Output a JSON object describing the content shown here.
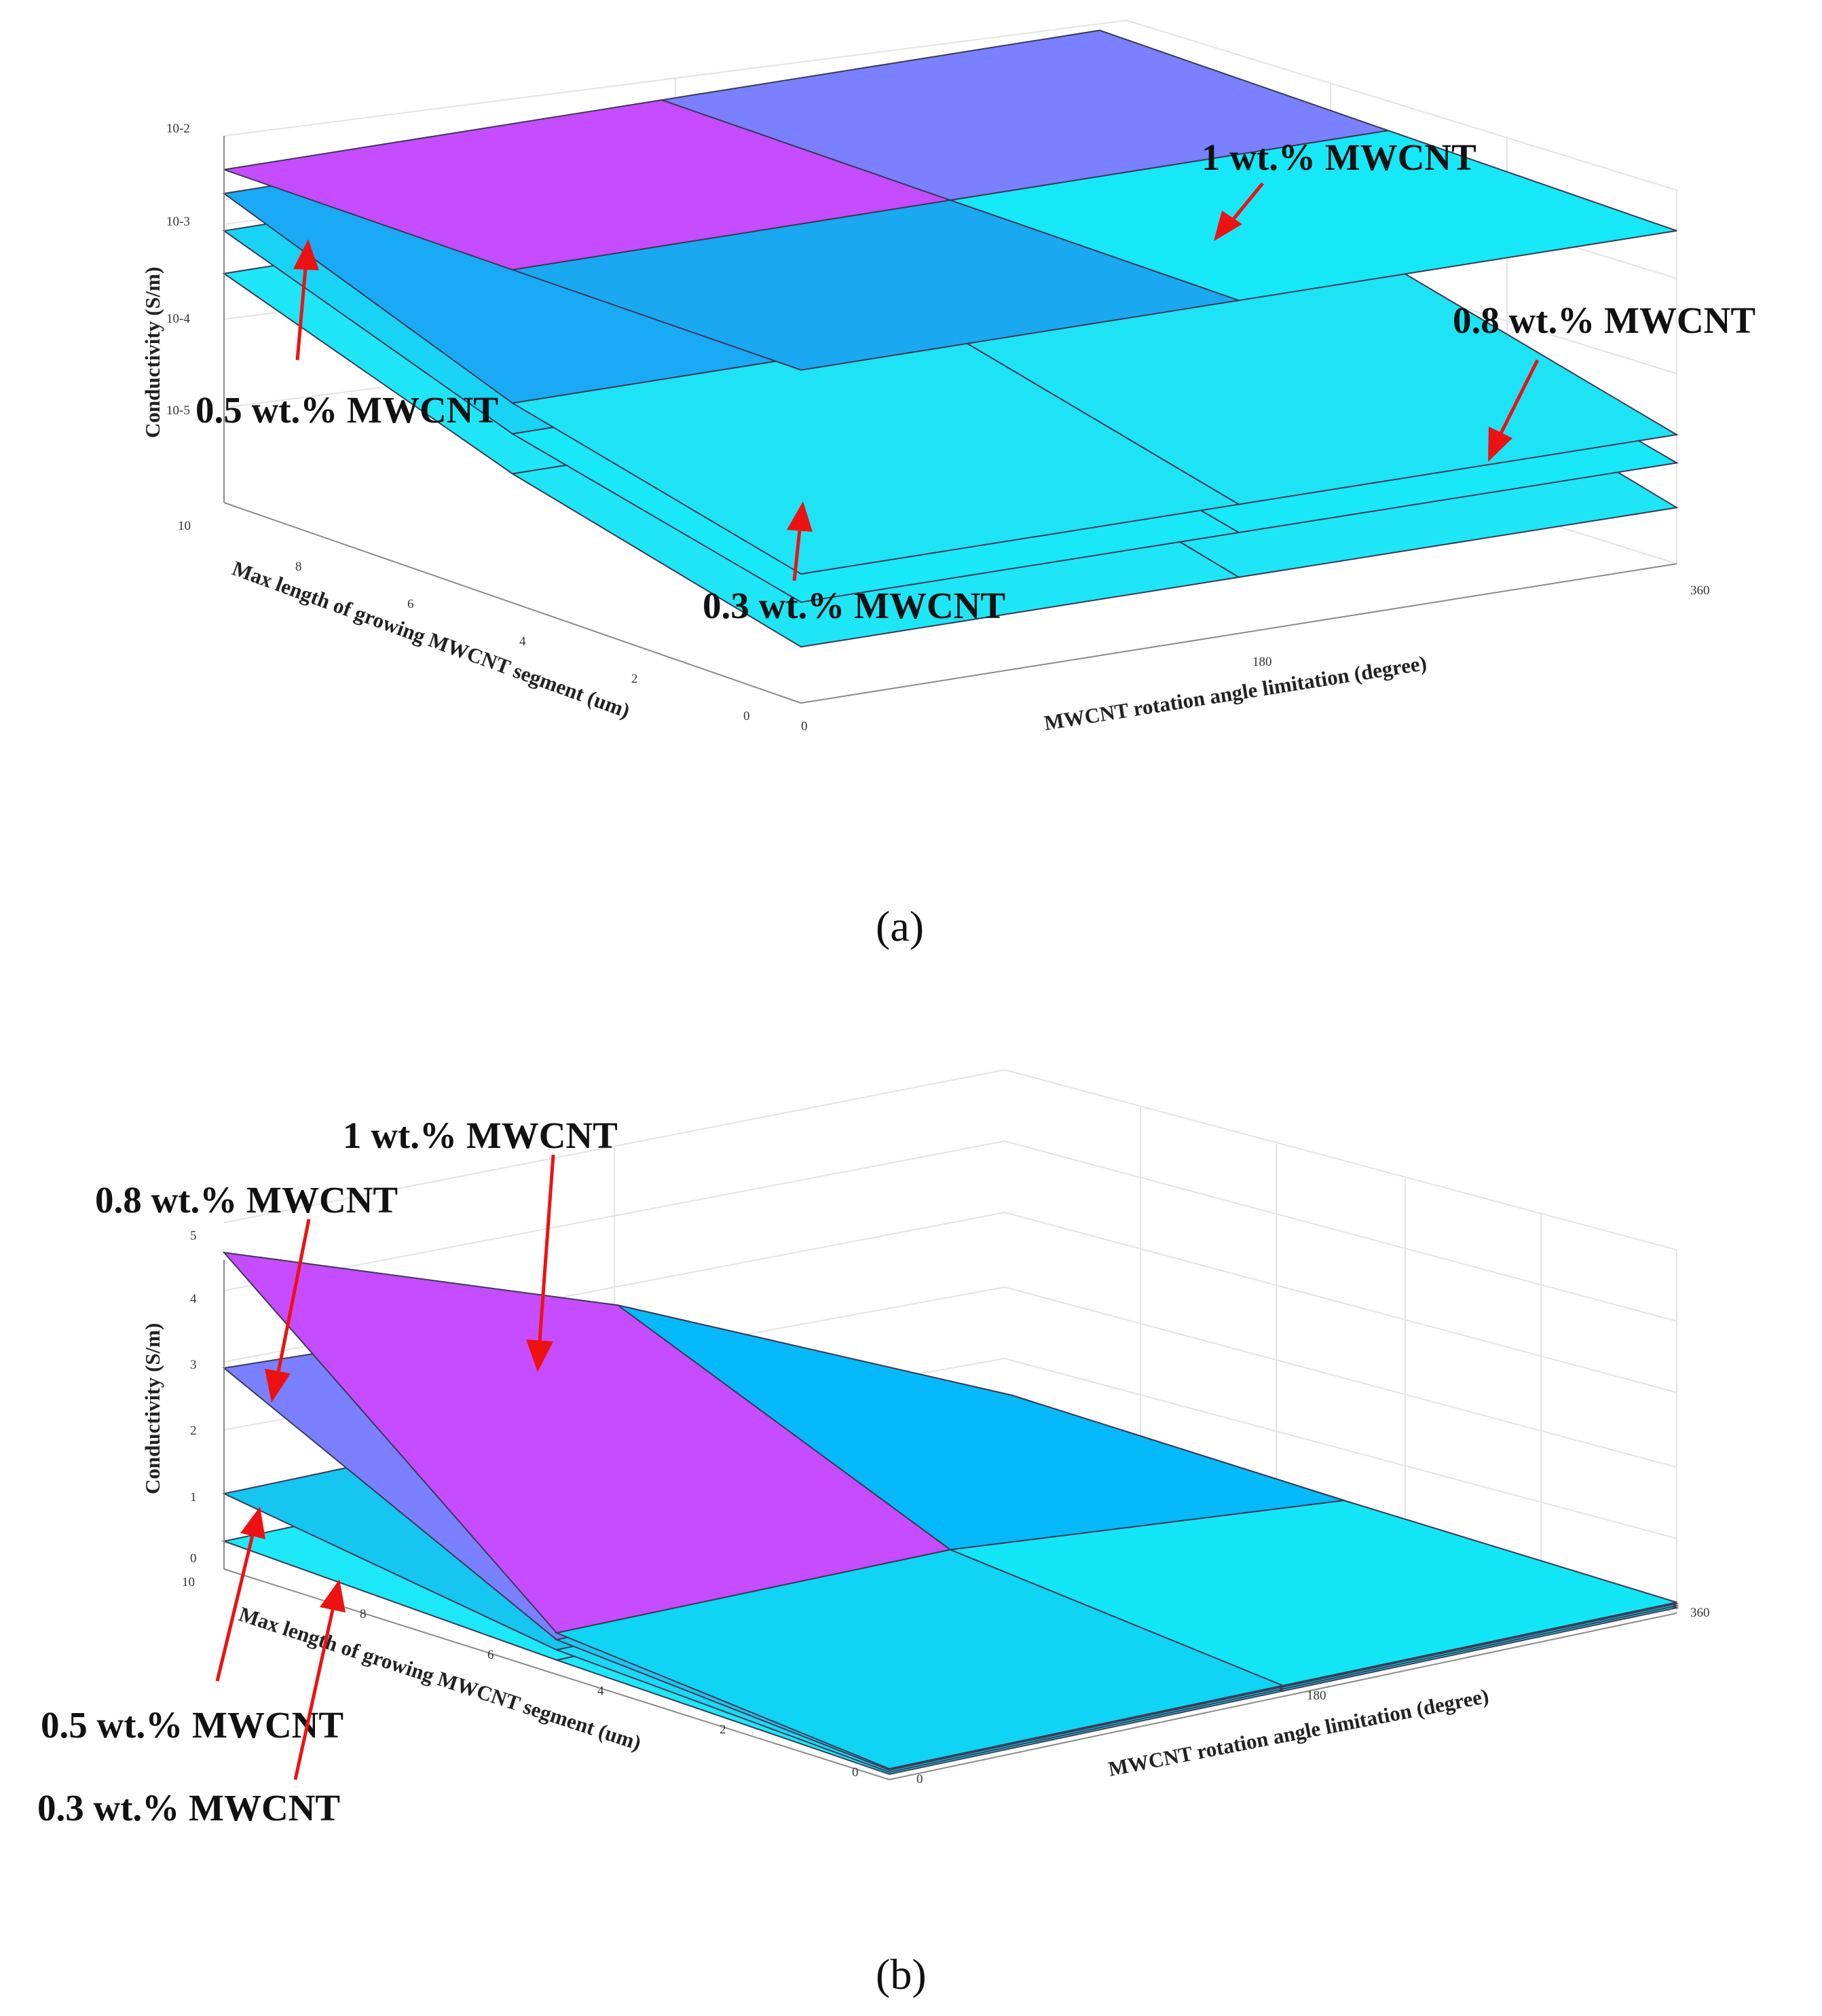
{
  "chart_data": [
    {
      "type": "surface3d",
      "panel": "a",
      "caption": "(a)",
      "zscale": "log",
      "xlabel": "MWCNT rotation angle limitation (degree)",
      "ylabel": "Max length of growing MWCNT segment (um)",
      "zlabel": "Conductivity (S/m)",
      "x_ticks": [
        "0",
        "180",
        "360"
      ],
      "y_ticks": [
        "0",
        "2",
        "4",
        "6",
        "8",
        "10"
      ],
      "z_ticks": [
        "10",
        "10-5",
        "10-4",
        "10-3",
        "10-2"
      ],
      "x": [
        0,
        180,
        360
      ],
      "y": [
        0,
        5,
        10
      ],
      "series": [
        {
          "name": "1 wt.% MWCNT",
          "z": [
            [
              0.0045,
              0.0045,
              0.0045
            ],
            [
              0.0045,
              0.0045,
              0.0045
            ],
            [
              0.0045,
              0.0045,
              0.0045
            ]
          ]
        },
        {
          "name": "0.8 wt.% MWCNT",
          "z": [
            [
              3e-05,
              3e-05,
              3e-05
            ],
            [
              0.00017,
              0.00017,
              0.00017
            ],
            [
              0.0025,
              0.0025,
              0.0025
            ]
          ]
        },
        {
          "name": "0.5 wt.% MWCNT",
          "z": [
            [
              1.5e-05,
              1.5e-05,
              1.5e-05
            ],
            [
              8e-05,
              8e-05,
              8e-05
            ],
            [
              0.001,
              0.001,
              0.001
            ]
          ]
        },
        {
          "name": "0.3 wt.% MWCNT",
          "z": [
            [
              5e-06,
              5e-06,
              5e-06
            ],
            [
              3e-05,
              3e-05,
              3e-05
            ],
            [
              0.00035,
              0.00035,
              0.00035
            ]
          ]
        }
      ],
      "annotations": [
        "1 wt.% MWCNT",
        "0.8 wt.% MWCNT",
        "0.5 wt.% MWCNT",
        "0.3 wt.% MWCNT"
      ]
    },
    {
      "type": "surface3d",
      "panel": "b",
      "caption": "(b)",
      "zscale": "linear",
      "xlabel": "MWCNT rotation angle limitation (degree)",
      "ylabel": "Max length of growing MWCNT segment (um)",
      "zlabel": "Conductivity (S/m)",
      "x_ticks": [
        "0",
        "180",
        "360"
      ],
      "y_ticks": [
        "0",
        "2",
        "4",
        "6",
        "8",
        "10"
      ],
      "z_ticks": [
        "0",
        "1",
        "2",
        "3",
        "4",
        "5"
      ],
      "x": [
        0,
        180,
        360
      ],
      "y": [
        0,
        5,
        10
      ],
      "series": [
        {
          "name": "1 wt.% MWCNT",
          "z": [
            [
              0.1,
              0.1,
              0.1
            ],
            [
              0.55,
              0.55,
              0.05
            ],
            [
              4.6,
              2.6,
              0.05
            ]
          ]
        },
        {
          "name": "0.8 wt.% MWCNT",
          "z": [
            [
              0.08,
              0.08,
              0.08
            ],
            [
              0.45,
              0.45,
              0.05
            ],
            [
              2.9,
              2.6,
              0.05
            ]
          ]
        },
        {
          "name": "0.5 wt.% MWCNT",
          "z": [
            [
              0.05,
              0.05,
              0.05
            ],
            [
              0.3,
              0.3,
              0.05
            ],
            [
              1.05,
              1.05,
              0.05
            ]
          ]
        },
        {
          "name": "0.3 wt.% MWCNT",
          "z": [
            [
              0.02,
              0.02,
              0.02
            ],
            [
              0.15,
              0.15,
              0.02
            ],
            [
              0.35,
              0.35,
              0.02
            ]
          ]
        }
      ],
      "annotations": [
        "1 wt.% MWCNT",
        "0.8 wt.% MWCNT",
        "0.5 wt.% MWCNT",
        "0.3 wt.% MWCNT"
      ]
    }
  ]
}
